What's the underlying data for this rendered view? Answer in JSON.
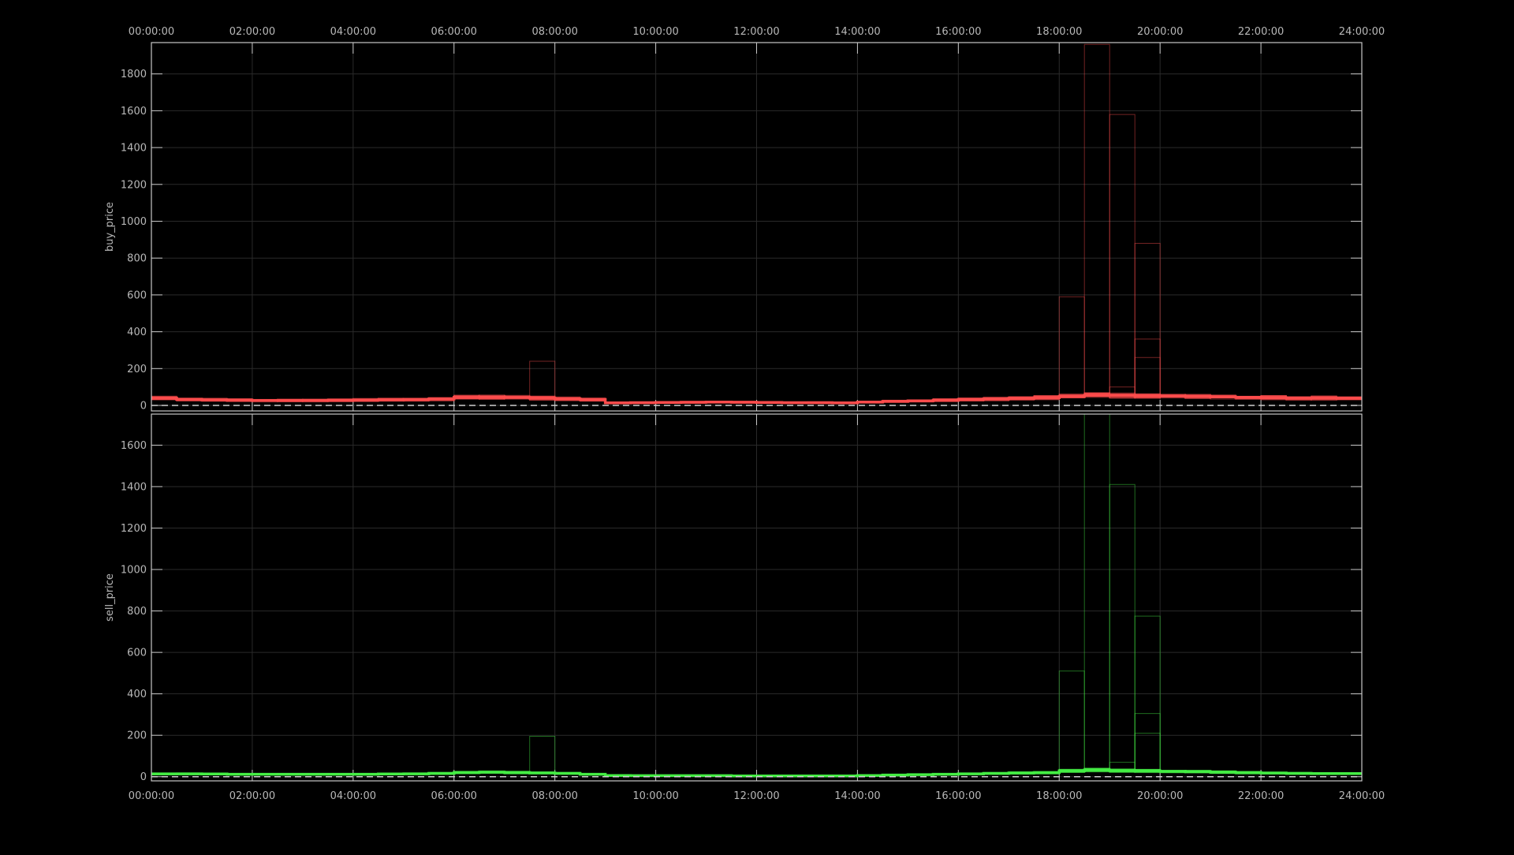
{
  "colors": {
    "background": "#000000",
    "frame": "#c8c8c8",
    "grid": "#2a2a2a",
    "buy": "#ff4d4d",
    "sell": "#44ee44",
    "zero_line": "#d0d0d0"
  },
  "chart_data": [
    {
      "type": "line",
      "step": true,
      "ylabel": "buy_price",
      "ylim": [
        -30,
        1970
      ],
      "yticks": [
        0,
        200,
        400,
        600,
        800,
        1000,
        1200,
        1400,
        1600,
        1800
      ],
      "xlim": [
        0,
        24
      ],
      "xticks": [
        "00:00:00",
        "02:00:00",
        "04:00:00",
        "06:00:00",
        "08:00:00",
        "10:00:00",
        "12:00:00",
        "14:00:00",
        "16:00:00",
        "18:00:00",
        "20:00:00",
        "22:00:00",
        "24:00:00"
      ],
      "xtick_position": "top",
      "zero_dashed": true,
      "grid": true,
      "typical": [
        40,
        33,
        30,
        28,
        27,
        27,
        27,
        28,
        29,
        30,
        32,
        35,
        44,
        46,
        43,
        40,
        36,
        32,
        14,
        15,
        16,
        17,
        18,
        17,
        16,
        15,
        15,
        14,
        18,
        22,
        25,
        28,
        32,
        35,
        38,
        42,
        48,
        55,
        55,
        52,
        50,
        48,
        46,
        44,
        42,
        40,
        40,
        40
      ],
      "spikes": [
        {
          "slot": 15,
          "values": [
            240
          ]
        },
        {
          "slot": 36,
          "values": [
            590
          ]
        },
        {
          "slot": 37,
          "values": [
            1960
          ]
        },
        {
          "slot": 38,
          "values": [
            1580,
            100
          ]
        },
        {
          "slot": 39,
          "values": [
            880,
            360,
            260
          ]
        }
      ]
    },
    {
      "type": "line",
      "step": true,
      "ylabel": "sell_price",
      "ylim": [
        -20,
        1750
      ],
      "yticks": [
        0,
        200,
        400,
        600,
        800,
        1000,
        1200,
        1400,
        1600
      ],
      "xlim": [
        0,
        24
      ],
      "xticks": [
        "00:00:00",
        "02:00:00",
        "04:00:00",
        "06:00:00",
        "08:00:00",
        "10:00:00",
        "12:00:00",
        "14:00:00",
        "16:00:00",
        "18:00:00",
        "20:00:00",
        "22:00:00",
        "24:00:00"
      ],
      "xtick_position": "bottom",
      "zero_dashed": true,
      "grid": true,
      "typical": [
        14,
        14,
        13,
        12,
        12,
        12,
        12,
        12,
        12,
        13,
        14,
        16,
        20,
        22,
        20,
        18,
        16,
        12,
        6,
        5,
        5,
        5,
        5,
        4,
        4,
        4,
        4,
        4,
        6,
        8,
        10,
        12,
        14,
        16,
        18,
        20,
        28,
        32,
        30,
        28,
        26,
        24,
        22,
        20,
        18,
        16,
        15,
        15
      ],
      "spikes": [
        {
          "slot": 15,
          "values": [
            195
          ]
        },
        {
          "slot": 36,
          "values": [
            510
          ]
        },
        {
          "slot": 37,
          "values": [
            1750
          ]
        },
        {
          "slot": 38,
          "values": [
            1410,
            70
          ]
        },
        {
          "slot": 39,
          "values": [
            775,
            305,
            210
          ]
        }
      ]
    }
  ]
}
